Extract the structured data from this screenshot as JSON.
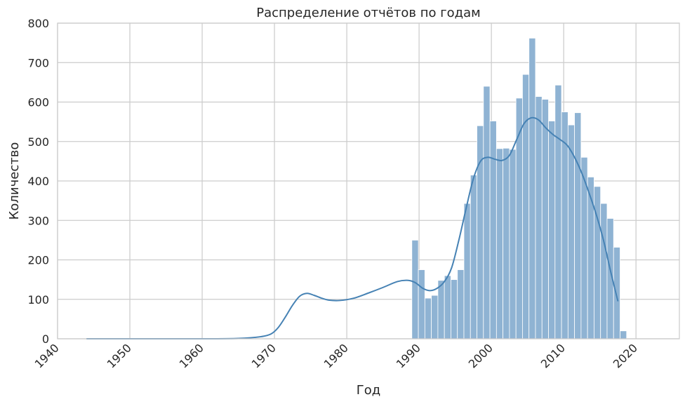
{
  "chart_data": {
    "type": "bar",
    "title": "Распределение отчётов по годам",
    "xlabel": "Год",
    "ylabel": "Количество",
    "xlim": [
      1940,
      2026
    ],
    "ylim": [
      0,
      800
    ],
    "x_ticks": [
      "1940",
      "1950",
      "1960",
      "1970",
      "1980",
      "1990",
      "2000",
      "2010",
      "2020"
    ],
    "y_ticks": [
      "0",
      "100",
      "200",
      "300",
      "400",
      "500",
      "600",
      "700",
      "800"
    ],
    "grid": true,
    "bar_color": "#8fb3d3",
    "line_color": "#4682b4",
    "bins": [
      {
        "start": 1989.0,
        "end": 1989.9,
        "value": 250
      },
      {
        "start": 1989.9,
        "end": 1990.8,
        "value": 175
      },
      {
        "start": 1990.8,
        "end": 1991.7,
        "value": 103
      },
      {
        "start": 1991.7,
        "end": 1992.6,
        "value": 110
      },
      {
        "start": 1992.6,
        "end": 1993.5,
        "value": 148
      },
      {
        "start": 1993.5,
        "end": 1994.4,
        "value": 160
      },
      {
        "start": 1994.4,
        "end": 1995.3,
        "value": 150
      },
      {
        "start": 1995.3,
        "end": 1996.2,
        "value": 175
      },
      {
        "start": 1996.2,
        "end": 1997.1,
        "value": 343
      },
      {
        "start": 1997.1,
        "end": 1998.0,
        "value": 415
      },
      {
        "start": 1998.0,
        "end": 1998.9,
        "value": 540
      },
      {
        "start": 1998.9,
        "end": 1999.8,
        "value": 640
      },
      {
        "start": 1999.8,
        "end": 2000.7,
        "value": 552
      },
      {
        "start": 2000.7,
        "end": 2001.6,
        "value": 482
      },
      {
        "start": 2001.6,
        "end": 2002.5,
        "value": 483
      },
      {
        "start": 2002.5,
        "end": 2003.4,
        "value": 480
      },
      {
        "start": 2003.4,
        "end": 2004.3,
        "value": 610
      },
      {
        "start": 2004.3,
        "end": 2005.2,
        "value": 670
      },
      {
        "start": 2005.2,
        "end": 2006.1,
        "value": 762
      },
      {
        "start": 2006.1,
        "end": 2007.0,
        "value": 614
      },
      {
        "start": 2007.0,
        "end": 2007.9,
        "value": 607
      },
      {
        "start": 2007.9,
        "end": 2008.8,
        "value": 552
      },
      {
        "start": 2008.8,
        "end": 2009.7,
        "value": 643
      },
      {
        "start": 2009.7,
        "end": 2010.6,
        "value": 575
      },
      {
        "start": 2010.6,
        "end": 2011.5,
        "value": 542
      },
      {
        "start": 2011.5,
        "end": 2012.4,
        "value": 573
      },
      {
        "start": 2012.4,
        "end": 2013.3,
        "value": 460
      },
      {
        "start": 2013.3,
        "end": 2014.2,
        "value": 410
      },
      {
        "start": 2014.2,
        "end": 2015.1,
        "value": 386
      },
      {
        "start": 2015.1,
        "end": 2016.0,
        "value": 343
      },
      {
        "start": 2016.0,
        "end": 2016.9,
        "value": 305
      },
      {
        "start": 2016.9,
        "end": 2017.8,
        "value": 232
      },
      {
        "start": 2017.8,
        "end": 2018.7,
        "value": 20
      }
    ],
    "kde": {
      "x": [
        1944,
        1950,
        1960,
        1965,
        1968,
        1969.5,
        1970.5,
        1971.5,
        1972.5,
        1973.5,
        1974.5,
        1975.5,
        1976.5,
        1977.5,
        1979,
        1981,
        1983,
        1985,
        1987,
        1988.5,
        1989.5,
        1990.5,
        1991.5,
        1992.5,
        1993.5,
        1994.5,
        1995.5,
        1996.5,
        1997.5,
        1998.5,
        1999.5,
        2000.5,
        2001.5,
        2002.5,
        2003.5,
        2004.5,
        2005.5,
        2006.5,
        2007.5,
        2008.5,
        2009.5,
        2010.5,
        2011.5,
        2012.5,
        2013.5,
        2014.5,
        2015.5,
        2016.5,
        2017.5
      ],
      "y": [
        0,
        0,
        0,
        1,
        5,
        12,
        28,
        55,
        85,
        108,
        115,
        110,
        103,
        98,
        97,
        103,
        116,
        130,
        145,
        148,
        142,
        128,
        122,
        128,
        145,
        180,
        250,
        330,
        405,
        450,
        460,
        455,
        452,
        465,
        505,
        545,
        560,
        555,
        535,
        518,
        505,
        490,
        460,
        420,
        370,
        315,
        250,
        170,
        95
      ]
    }
  }
}
